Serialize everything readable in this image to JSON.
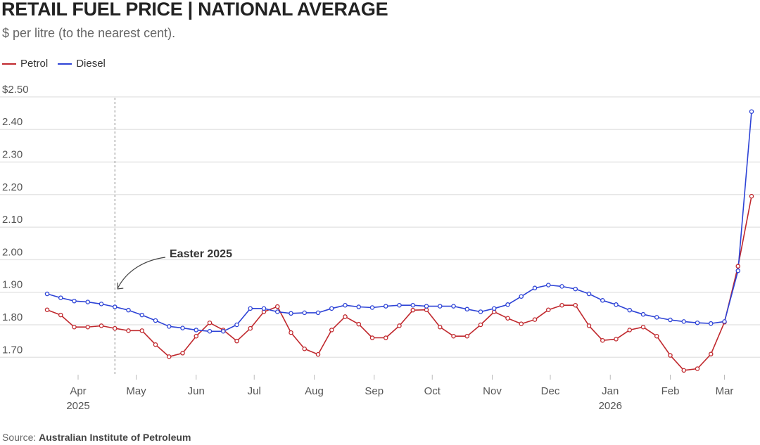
{
  "chart_data": {
    "type": "line",
    "title": "RETAIL FUEL PRICE | NATIONAL AVERAGE",
    "subtitle": "$ per litre (to the nearest cent).",
    "source_label": "Source:",
    "source": "Australian Institute of Petroleum",
    "ylim": [
      1.65,
      2.5
    ],
    "y_ticks": [
      {
        "value": 2.5,
        "label": "$2.50"
      },
      {
        "value": 2.4,
        "label": "2.40"
      },
      {
        "value": 2.3,
        "label": "2.30"
      },
      {
        "value": 2.2,
        "label": "2.20"
      },
      {
        "value": 2.1,
        "label": "2.10"
      },
      {
        "value": 2.0,
        "label": "2.00"
      },
      {
        "value": 1.9,
        "label": "1.90"
      },
      {
        "value": 1.8,
        "label": "1.80"
      },
      {
        "value": 1.7,
        "label": "1.70"
      }
    ],
    "grid": true,
    "legend_position": "top-left",
    "start_date": "2025-03-16",
    "interval_days": 7,
    "x_ticks": [
      {
        "date": "2025-04-01",
        "label": "Apr",
        "year": "2025"
      },
      {
        "date": "2025-05-01",
        "label": "May"
      },
      {
        "date": "2025-06-01",
        "label": "Jun"
      },
      {
        "date": "2025-07-01",
        "label": "Jul"
      },
      {
        "date": "2025-08-01",
        "label": "Aug"
      },
      {
        "date": "2025-09-01",
        "label": "Sep"
      },
      {
        "date": "2025-10-01",
        "label": "Oct"
      },
      {
        "date": "2025-11-01",
        "label": "Nov"
      },
      {
        "date": "2025-12-01",
        "label": "Dec"
      },
      {
        "date": "2026-01-01",
        "label": "Jan",
        "year": "2026"
      },
      {
        "date": "2026-02-01",
        "label": "Feb"
      },
      {
        "date": "2026-03-01",
        "label": "Mar"
      }
    ],
    "annotation": {
      "label": "Easter 2025",
      "date": "2025-04-20"
    },
    "series": [
      {
        "name": "Petrol",
        "color": "#c0282d",
        "values": [
          1.846,
          1.83,
          1.793,
          1.793,
          1.797,
          1.789,
          1.782,
          1.782,
          1.739,
          1.702,
          1.713,
          1.765,
          1.806,
          1.784,
          1.75,
          1.789,
          1.84,
          1.856,
          1.776,
          1.726,
          1.709,
          1.784,
          1.825,
          1.802,
          1.76,
          1.76,
          1.797,
          1.845,
          1.846,
          1.793,
          1.765,
          1.765,
          1.8,
          1.84,
          1.82,
          1.803,
          1.816,
          1.846,
          1.86,
          1.86,
          1.797,
          1.752,
          1.756,
          1.784,
          1.793,
          1.765,
          1.706,
          1.66,
          1.665,
          1.71,
          1.808,
          1.98,
          2.195
        ]
      },
      {
        "name": "Diesel",
        "color": "#2d43d6",
        "values": [
          1.895,
          1.883,
          1.873,
          1.87,
          1.864,
          1.855,
          1.845,
          1.83,
          1.813,
          1.795,
          1.79,
          1.784,
          1.78,
          1.78,
          1.8,
          1.85,
          1.85,
          1.84,
          1.835,
          1.837,
          1.837,
          1.85,
          1.86,
          1.855,
          1.853,
          1.857,
          1.86,
          1.86,
          1.857,
          1.857,
          1.857,
          1.848,
          1.84,
          1.85,
          1.862,
          1.887,
          1.913,
          1.922,
          1.918,
          1.91,
          1.895,
          1.875,
          1.862,
          1.845,
          1.832,
          1.823,
          1.815,
          1.81,
          1.806,
          1.804,
          1.81,
          1.966,
          2.455
        ]
      }
    ]
  }
}
